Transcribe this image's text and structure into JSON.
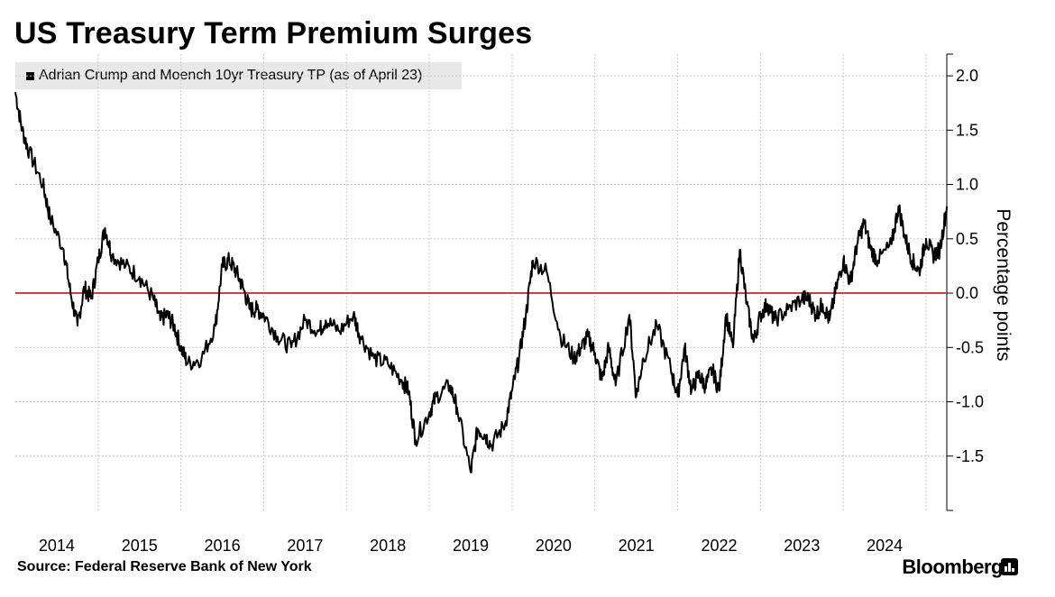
{
  "title": "US Treasury Term Premium Surges",
  "source": "Source: Federal Reserve Bank of New York",
  "brand": "Bloomberg",
  "colors": {
    "series": "#000000",
    "zero_line": "#c9424b",
    "grid": "#c8c8c8",
    "legend_bg": "#e8e8e8"
  },
  "chart_data": {
    "type": "line",
    "title": "US Treasury Term Premium Surges",
    "ylabel": "Percentage points",
    "ylim": [
      -2.0,
      2.2
    ],
    "yticks": [
      2.0,
      1.5,
      1.0,
      0.5,
      0.0,
      -0.5,
      -1.0,
      -1.5
    ],
    "ytick_labels": [
      "2.0",
      "1.5",
      "1.0",
      "0.5",
      "0.0",
      "-0.5",
      "-1.0",
      "-1.5"
    ],
    "xticks": [
      "2014",
      "2015",
      "2016",
      "2017",
      "2018",
      "2019",
      "2020",
      "2021",
      "2022",
      "2023",
      "2024"
    ],
    "xlim": [
      "2014-01",
      "2025-04"
    ],
    "grid": true,
    "reference_line": {
      "y": 0,
      "color": "#c9424b"
    },
    "legend": [
      "Adrian Crump and Moench 10yr Treasury TP (as of April 23)"
    ],
    "series": [
      {
        "name": "Adrian Crump and Moench 10yr Treasury TP (as of April 23)",
        "x": [
          "2014-01",
          "2014-02",
          "2014-03",
          "2014-05",
          "2014-06",
          "2014-08",
          "2014-09",
          "2014-10",
          "2014-11",
          "2014-12",
          "2015-01",
          "2015-02",
          "2015-03",
          "2015-05",
          "2015-07",
          "2015-09",
          "2015-10",
          "2015-11",
          "2015-12",
          "2016-01",
          "2016-02",
          "2016-04",
          "2016-06",
          "2016-07",
          "2016-08",
          "2016-09",
          "2016-10",
          "2016-11",
          "2016-12",
          "2017-01",
          "2017-03",
          "2017-05",
          "2017-07",
          "2017-09",
          "2017-10",
          "2017-12",
          "2018-02",
          "2018-03",
          "2018-05",
          "2018-07",
          "2018-09",
          "2018-10",
          "2018-11",
          "2019-01",
          "2019-02",
          "2019-04",
          "2019-05",
          "2019-07",
          "2019-08",
          "2019-09",
          "2019-10",
          "2019-12",
          "2020-01",
          "2020-02",
          "2020-03",
          "2020-04",
          "2020-06",
          "2020-08",
          "2020-10",
          "2020-11",
          "2020-12",
          "2021-01",
          "2021-02",
          "2021-03",
          "2021-04",
          "2021-06",
          "2021-07",
          "2021-08",
          "2021-10",
          "2021-12",
          "2022-01",
          "2022-02",
          "2022-03",
          "2022-04",
          "2022-05",
          "2022-06",
          "2022-07",
          "2022-08",
          "2022-09",
          "2022-10",
          "2022-11",
          "2022-12",
          "2023-01",
          "2023-02",
          "2023-03",
          "2023-05",
          "2023-07",
          "2023-08",
          "2023-09",
          "2023-10",
          "2023-11",
          "2023-12",
          "2024-01",
          "2024-02",
          "2024-03",
          "2024-04",
          "2024-05",
          "2024-06",
          "2024-08",
          "2024-09",
          "2024-10",
          "2024-11",
          "2024-12",
          "2025-01",
          "2025-02",
          "2025-03",
          "2025-04"
        ],
        "values": [
          1.85,
          1.5,
          1.3,
          1.0,
          0.7,
          0.4,
          0.0,
          -0.3,
          0.05,
          -0.05,
          0.3,
          0.6,
          0.35,
          0.25,
          0.15,
          -0.05,
          -0.25,
          -0.2,
          -0.3,
          -0.5,
          -0.65,
          -0.6,
          -0.3,
          0.25,
          0.3,
          0.2,
          0.05,
          -0.15,
          -0.15,
          -0.2,
          -0.4,
          -0.5,
          -0.25,
          -0.35,
          -0.25,
          -0.35,
          -0.2,
          -0.4,
          -0.6,
          -0.65,
          -0.8,
          -0.9,
          -1.35,
          -1.1,
          -0.95,
          -0.85,
          -1.05,
          -1.65,
          -1.25,
          -1.3,
          -1.4,
          -1.2,
          -0.9,
          -0.6,
          -0.2,
          0.3,
          0.2,
          -0.4,
          -0.6,
          -0.5,
          -0.4,
          -0.55,
          -0.8,
          -0.5,
          -0.85,
          -0.2,
          -0.95,
          -0.6,
          -0.3,
          -0.7,
          -0.95,
          -0.5,
          -0.9,
          -0.75,
          -0.85,
          -0.7,
          -0.9,
          -0.2,
          -0.5,
          0.4,
          -0.1,
          -0.45,
          -0.2,
          -0.1,
          -0.25,
          -0.15,
          -0.05,
          -0.05,
          -0.2,
          -0.1,
          -0.25,
          0.05,
          0.3,
          0.1,
          0.45,
          0.65,
          0.4,
          0.3,
          0.45,
          0.8,
          0.5,
          0.3,
          0.2,
          0.5,
          0.35,
          0.4,
          0.8
        ]
      }
    ]
  }
}
